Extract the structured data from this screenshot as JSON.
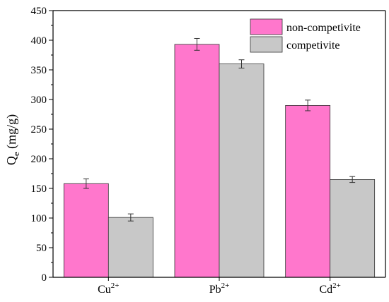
{
  "chart_data": {
    "type": "bar",
    "categories": [
      {
        "base": "Cu",
        "sup": "2+"
      },
      {
        "base": "Pb",
        "sup": "2+"
      },
      {
        "base": "Cd",
        "sup": "2+"
      }
    ],
    "series": [
      {
        "name": "non-competivite",
        "color": "#ff77cc",
        "values": [
          158,
          393,
          290
        ],
        "errors": [
          8,
          10,
          9
        ]
      },
      {
        "name": "competivite",
        "color": "#c8c8c8",
        "values": [
          101,
          360,
          165
        ],
        "errors": [
          6,
          7,
          5
        ]
      }
    ],
    "ylabel": {
      "base": "Q",
      "sub": "e",
      "unit": " (mg/g)"
    },
    "ylim": [
      0,
      450
    ],
    "yticks": [
      0,
      50,
      100,
      150,
      200,
      250,
      300,
      350,
      400,
      450
    ],
    "legend_position": "top-right",
    "grid": false
  }
}
